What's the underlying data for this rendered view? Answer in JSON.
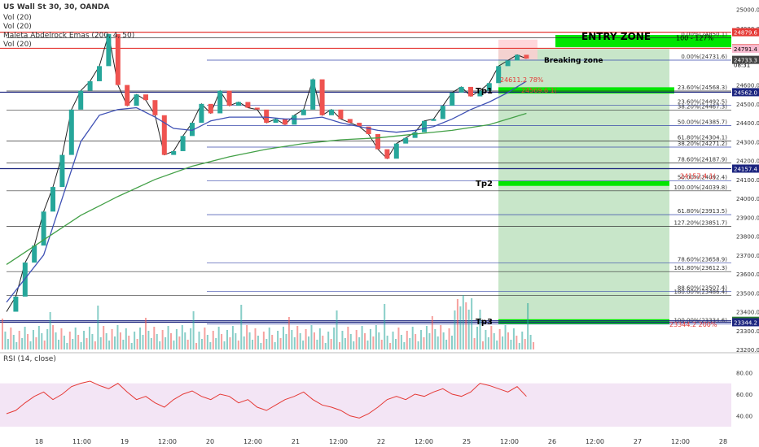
{
  "chart_data": {
    "type": "line",
    "title": "US Wall St 30, 30, OANDA",
    "legend_lines": [
      "Vol (20)",
      "Vol (20)",
      "Maleta Abdelrock Emas (200, 4, 50)",
      "Vol (20)"
    ],
    "rsi_label": "RSI (14, close)",
    "ylim": [
      23200,
      25050
    ],
    "y_ticks": [
      25000,
      24900,
      24800,
      24700,
      24600,
      24500,
      24400,
      24300,
      24200,
      24100,
      24000,
      23900,
      23800,
      23700,
      23600,
      23500,
      23400,
      23300,
      23200
    ],
    "y_tick_labels": [
      "25000.0",
      "24900.0",
      "24800.0",
      "24700.0",
      "24600.0",
      "24500.0",
      "24400.0",
      "24300.0",
      "24200.0",
      "24100.0",
      "24000.0",
      "23900.0",
      "23800.0",
      "23700.0",
      "23600.0",
      "23500.0",
      "23400.0",
      "23300.0",
      "23200.0"
    ],
    "x_tick_labels": [
      "18",
      "11:00",
      "19",
      "12:00",
      "20",
      "12:00",
      "21",
      "12:00",
      "22",
      "12:00",
      "25",
      "12:00",
      "26",
      "12:00",
      "27",
      "12:00",
      "28"
    ],
    "price_path": [
      [
        0,
        23400
      ],
      [
        1,
        23480
      ],
      [
        2,
        23660
      ],
      [
        3,
        23750
      ],
      [
        4,
        23930
      ],
      [
        5,
        24060
      ],
      [
        6,
        24230
      ],
      [
        7,
        24470
      ],
      [
        8,
        24570
      ],
      [
        9,
        24620
      ],
      [
        10,
        24700
      ],
      [
        11,
        24870
      ],
      [
        12,
        24600
      ],
      [
        13,
        24490
      ],
      [
        14,
        24550
      ],
      [
        15,
        24520
      ],
      [
        16,
        24440
      ],
      [
        17,
        24230
      ],
      [
        18,
        24250
      ],
      [
        19,
        24330
      ],
      [
        20,
        24400
      ],
      [
        21,
        24500
      ],
      [
        22,
        24450
      ],
      [
        23,
        24570
      ],
      [
        24,
        24490
      ],
      [
        25,
        24510
      ],
      [
        26,
        24480
      ],
      [
        27,
        24470
      ],
      [
        28,
        24400
      ],
      [
        29,
        24420
      ],
      [
        30,
        24390
      ],
      [
        31,
        24440
      ],
      [
        32,
        24470
      ],
      [
        33,
        24630
      ],
      [
        34,
        24440
      ],
      [
        35,
        24470
      ],
      [
        36,
        24420
      ],
      [
        37,
        24400
      ],
      [
        38,
        24380
      ],
      [
        39,
        24340
      ],
      [
        40,
        24260
      ],
      [
        41,
        24210
      ],
      [
        42,
        24290
      ],
      [
        43,
        24320
      ],
      [
        44,
        24350
      ],
      [
        45,
        24410
      ],
      [
        46,
        24420
      ],
      [
        47,
        24490
      ],
      [
        48,
        24560
      ],
      [
        49,
        24590
      ],
      [
        50,
        24540
      ],
      [
        51,
        24570
      ],
      [
        52,
        24610
      ],
      [
        53,
        24700
      ],
      [
        54,
        24730
      ],
      [
        55,
        24760
      ],
      [
        56,
        24740
      ]
    ],
    "ema_blue": [
      [
        0,
        23450
      ],
      [
        4,
        23700
      ],
      [
        8,
        24300
      ],
      [
        10,
        24440
      ],
      [
        12,
        24470
      ],
      [
        14,
        24480
      ],
      [
        16,
        24430
      ],
      [
        18,
        24370
      ],
      [
        20,
        24360
      ],
      [
        22,
        24410
      ],
      [
        24,
        24430
      ],
      [
        26,
        24430
      ],
      [
        28,
        24430
      ],
      [
        30,
        24420
      ],
      [
        32,
        24420
      ],
      [
        34,
        24430
      ],
      [
        36,
        24400
      ],
      [
        38,
        24380
      ],
      [
        40,
        24360
      ],
      [
        42,
        24350
      ],
      [
        44,
        24360
      ],
      [
        46,
        24380
      ],
      [
        48,
        24420
      ],
      [
        50,
        24470
      ],
      [
        52,
        24510
      ],
      [
        54,
        24560
      ],
      [
        56,
        24620
      ]
    ],
    "ema_green": [
      [
        0,
        23650
      ],
      [
        4,
        23780
      ],
      [
        8,
        23910
      ],
      [
        12,
        24010
      ],
      [
        16,
        24100
      ],
      [
        20,
        24170
      ],
      [
        24,
        24220
      ],
      [
        28,
        24260
      ],
      [
        32,
        24290
      ],
      [
        36,
        24310
      ],
      [
        40,
        24320
      ],
      [
        44,
        24340
      ],
      [
        48,
        24360
      ],
      [
        52,
        24390
      ],
      [
        56,
        24450
      ]
    ],
    "fib_labels": [
      {
        "price": 24850.1,
        "text": "0.00%(24850.1)"
      },
      {
        "price": 24731.6,
        "text": "0.00%(24731.6)"
      },
      {
        "price": 24568.3,
        "text": "23.60%(24568.3)"
      },
      {
        "price": 24492.5,
        "text": "23.60%(24492.5)"
      },
      {
        "price": 24467.3,
        "text": "38.20%(24467.3)"
      },
      {
        "price": 24385.7,
        "text": "50.00%(24385.7)"
      },
      {
        "price": 24304.1,
        "text": "61.80%(24304.1)"
      },
      {
        "price": 24271.2,
        "text": "38.20%(24271.2)"
      },
      {
        "price": 24187.9,
        "text": "78.60%(24187.9)"
      },
      {
        "price": 24092.4,
        "text": "50.00%(24092.4)"
      },
      {
        "price": 24039.8,
        "text": "100.00%(24039.8)"
      },
      {
        "price": 23913.5,
        "text": "61.80%(23913.5)"
      },
      {
        "price": 23851.7,
        "text": "127.20%(23851.7)"
      },
      {
        "price": 23658.9,
        "text": "78.60%(23658.9)"
      },
      {
        "price": 23612.3,
        "text": "161.80%(23612.3)"
      },
      {
        "price": 23507.4,
        "text": "88.60%(23507.4)"
      },
      {
        "price": 23486.4,
        "text": "180.00%(23486.4)"
      },
      {
        "price": 23334.6,
        "text": "100.00%(23334.6)"
      }
    ],
    "horizontal_lines": [
      {
        "price": 24879.6,
        "color": "#e53935"
      },
      {
        "price": 24794.3,
        "color": "#e53935"
      },
      {
        "price": 24562.0,
        "color": "#1a237e"
      },
      {
        "price": 24157.4,
        "color": "#1a237e"
      },
      {
        "price": 23351.9,
        "color": "#1a237e"
      },
      {
        "price": 23344.2,
        "color": "#1a237e"
      }
    ],
    "price_tags": [
      {
        "price": 24879.6,
        "text": "24879.6",
        "bg": "#e53935",
        "fg": "#ffffff"
      },
      {
        "price": 24794.3,
        "text": "24794.3",
        "bg": "#e53935",
        "fg": "#ffffff"
      },
      {
        "price": 24791.4,
        "text": "24791.4",
        "bg": "#f8bbd0",
        "fg": "#000000"
      },
      {
        "price": 24735.0,
        "text": "24735.0",
        "bg": "#ffffff",
        "fg": "#000000"
      },
      {
        "price": 24707,
        "text": "08:31",
        "bg": "#ffffff",
        "fg": "#000000"
      },
      {
        "price": 24733.3,
        "text": "24733.3",
        "bg": "#424242",
        "fg": "#ffffff"
      },
      {
        "price": 24562.0,
        "text": "24562.0",
        "bg": "#1a237e",
        "fg": "#ffffff"
      },
      {
        "price": 24157.4,
        "text": "24157.4",
        "bg": "#1a237e",
        "fg": "#ffffff"
      },
      {
        "price": 23351.9,
        "text": "23351.9",
        "bg": "#2e7d32",
        "fg": "#ffffff"
      },
      {
        "price": 23344.2,
        "text": "23344.2",
        "bg": "#1a237e",
        "fg": "#ffffff"
      }
    ],
    "annotations": {
      "entry_zone": "ENTRY ZONE",
      "entry_ratio": "100 - 127%",
      "breaking_zone": "Breaking zone",
      "tp1": "Tp1",
      "tp2": "Tp2",
      "tp3": "Tp3",
      "red_text_1": "24611.2 78%",
      "red_text_2": "24569.6 1(",
      "red_text_3": "24157.4 1(",
      "red_text_4": "23344.2 200%"
    },
    "rsi_ticks": [
      80.0,
      60.0,
      40.0
    ],
    "rsi_tick_labels": [
      "80.00",
      "60.00",
      "40.00"
    ],
    "rsi_values": [
      42,
      45,
      52,
      58,
      62,
      55,
      60,
      67,
      70,
      72,
      68,
      65,
      70,
      62,
      55,
      58,
      52,
      48,
      55,
      60,
      63,
      58,
      55,
      60,
      58,
      52,
      55,
      48,
      45,
      50,
      55,
      58,
      62,
      55,
      50,
      48,
      45,
      40,
      38,
      42,
      48,
      55,
      58,
      55,
      60,
      58,
      62,
      65,
      60,
      58,
      62,
      70,
      68,
      65,
      62,
      67,
      58
    ],
    "colors": {
      "up": "#26a69a",
      "down": "#ef5350",
      "ema_blue": "#3f51b5",
      "ema_green": "#43a047",
      "zone_green": "#00e600",
      "zone_light": "#c8e6c9",
      "zone_red": "#ffcdd2",
      "rsi_band": "#f3e5f5"
    }
  }
}
